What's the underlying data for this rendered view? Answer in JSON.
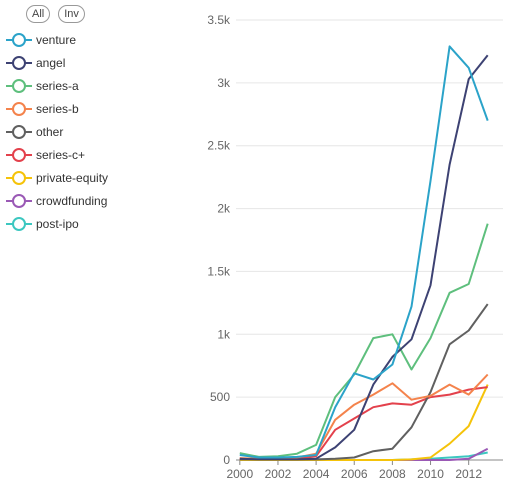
{
  "legend": {
    "all_label": "All",
    "inv_label": "Inv"
  },
  "chart_data": {
    "type": "line",
    "title": "",
    "xlabel": "",
    "ylabel": "",
    "x": [
      2000,
      2001,
      2002,
      2003,
      2004,
      2005,
      2006,
      2007,
      2008,
      2009,
      2010,
      2011,
      2012,
      2013
    ],
    "xlim": [
      1999.8,
      2013.8
    ],
    "ylim": [
      0,
      3500
    ],
    "xticks": [
      2000,
      2002,
      2004,
      2006,
      2008,
      2010,
      2012
    ],
    "xtick_labels": [
      "2000",
      "2002",
      "2004",
      "2006",
      "2008",
      "2010",
      "2012"
    ],
    "yticks": [
      0,
      500,
      1000,
      1500,
      2000,
      2500,
      3000,
      3500
    ],
    "ytick_labels": [
      "0",
      "500",
      "1k",
      "1.5k",
      "2k",
      "2.5k",
      "3k",
      "3.5k"
    ],
    "grid": true,
    "legend_position": "top-left",
    "series": [
      {
        "name": "venture",
        "color": "#2ba3c9",
        "values": [
          40,
          20,
          20,
          25,
          40,
          420,
          690,
          640,
          760,
          1220,
          2220,
          3290,
          3120,
          2700
        ]
      },
      {
        "name": "angel",
        "color": "#3d4273",
        "values": [
          10,
          5,
          5,
          5,
          10,
          100,
          240,
          600,
          820,
          960,
          1390,
          2350,
          3030,
          3220
        ]
      },
      {
        "name": "series-a",
        "color": "#5ebf7d",
        "values": [
          55,
          25,
          30,
          50,
          120,
          500,
          680,
          970,
          1000,
          720,
          970,
          1330,
          1400,
          1880
        ]
      },
      {
        "name": "series-b",
        "color": "#f4834c",
        "values": [
          15,
          10,
          15,
          20,
          50,
          320,
          440,
          520,
          610,
          480,
          510,
          600,
          520,
          680
        ]
      },
      {
        "name": "other",
        "color": "#606060",
        "values": [
          5,
          5,
          5,
          5,
          5,
          10,
          20,
          70,
          90,
          260,
          540,
          920,
          1030,
          1240
        ]
      },
      {
        "name": "series-c+",
        "color": "#e3414c",
        "values": [
          10,
          10,
          10,
          10,
          30,
          240,
          330,
          420,
          450,
          440,
          500,
          520,
          560,
          580
        ]
      },
      {
        "name": "private-equity",
        "color": "#f5c30a",
        "values": [
          0,
          0,
          0,
          0,
          0,
          0,
          0,
          0,
          0,
          5,
          20,
          130,
          270,
          600
        ]
      },
      {
        "name": "crowdfunding",
        "color": "#9a59b5",
        "values": [
          0,
          0,
          0,
          0,
          0,
          0,
          0,
          0,
          0,
          0,
          0,
          0,
          10,
          90
        ]
      },
      {
        "name": "post-ipo",
        "color": "#3cc7c0",
        "values": [
          0,
          0,
          0,
          0,
          0,
          0,
          0,
          0,
          0,
          5,
          10,
          20,
          30,
          60
        ]
      }
    ]
  }
}
